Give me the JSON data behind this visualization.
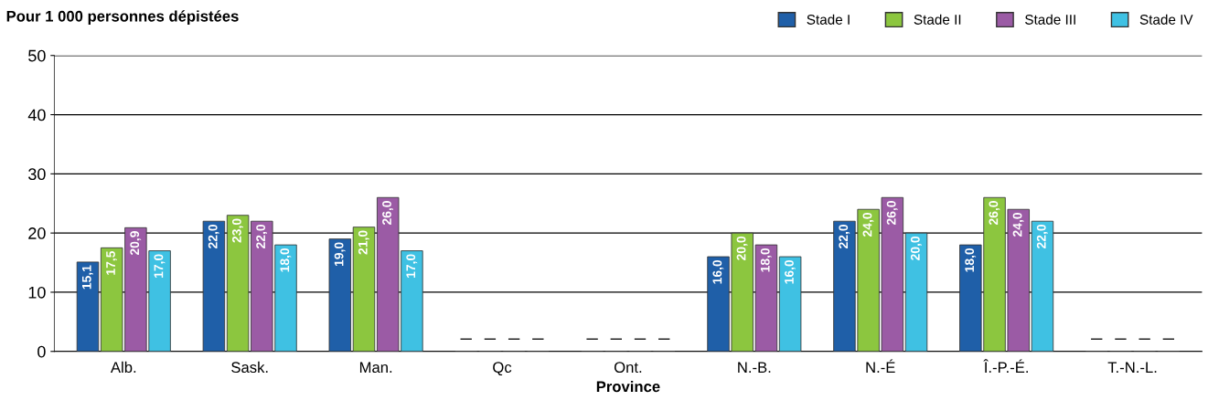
{
  "chart_data": {
    "type": "bar",
    "title": "Pour 1 000 personnes dépistées",
    "xlabel": "Province",
    "categories": [
      "Alb.",
      "Sask.",
      "Man.",
      "Qc",
      "Ont.",
      "N.-B.",
      "N.-É",
      "Î.-P.-É.",
      "T.-N.-L."
    ],
    "series": [
      {
        "name": "Stade I",
        "color": "#1f5fa8",
        "values": [
          15.1,
          22.0,
          19.0,
          null,
          null,
          16.0,
          22.0,
          18.0,
          null
        ],
        "value_labels": [
          "15,1",
          "22,0",
          "19,0",
          "–",
          "–",
          "16,0",
          "22,0",
          "18,0",
          "–"
        ]
      },
      {
        "name": "Stade II",
        "color": "#8cc63f",
        "values": [
          17.5,
          23.0,
          21.0,
          null,
          null,
          20.0,
          24.0,
          26.0,
          null
        ],
        "value_labels": [
          "17,5",
          "23,0",
          "21,0",
          "–",
          "–",
          "20,0",
          "24,0",
          "26,0",
          "–"
        ]
      },
      {
        "name": "Stade III",
        "color": "#9b5ba5",
        "values": [
          20.9,
          22.0,
          26.0,
          null,
          null,
          18.0,
          26.0,
          24.0,
          null
        ],
        "value_labels": [
          "20,9",
          "22,0",
          "26,0",
          "–",
          "–",
          "18,0",
          "26,0",
          "24,0",
          "–"
        ]
      },
      {
        "name": "Stade IV",
        "color": "#3fc1e3",
        "values": [
          17.0,
          18.0,
          17.0,
          null,
          null,
          16.0,
          20.0,
          22.0,
          null
        ],
        "value_labels": [
          "17,0",
          "18,0",
          "17,0",
          "–",
          "–",
          "16,0",
          "20,0",
          "22,0",
          "–"
        ]
      }
    ],
    "ylim": [
      0,
      50
    ],
    "yticks": [
      0,
      10,
      20,
      30,
      40,
      50
    ],
    "grid": "y",
    "legend": "top right"
  }
}
